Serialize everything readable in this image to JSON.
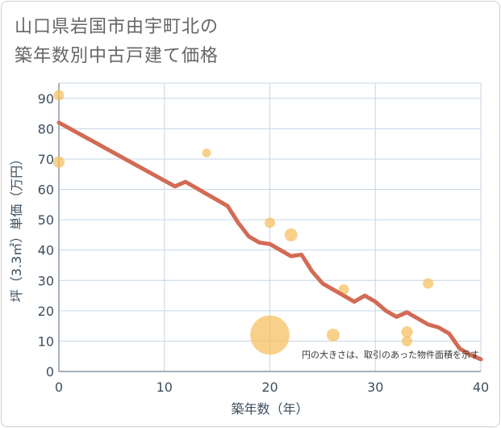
{
  "title_line1": "山口県岩国市由宇町北の",
  "title_line2": "築年数別中古戸建て価格",
  "chart_data": {
    "type": "scatter+line",
    "xlabel": "築年数（年）",
    "ylabel": "坪（3.3㎡）単価（万円）",
    "xlim": [
      0,
      40
    ],
    "ylim": [
      0,
      95
    ],
    "xticks": [
      0,
      10,
      20,
      30,
      40
    ],
    "yticks": [
      0,
      10,
      20,
      30,
      40,
      50,
      60,
      70,
      80,
      90
    ],
    "annotation": "円の大きさは、取引のあった物件面積を示す",
    "colors": {
      "line": "#d26b55",
      "bubble": "#f5c063",
      "grid": "#c7d6e6"
    },
    "trend_line": {
      "x": [
        0,
        11,
        12,
        16,
        17,
        18,
        19,
        20,
        21,
        22,
        23,
        24,
        25,
        26,
        27,
        28,
        29,
        30,
        31,
        32,
        33,
        34,
        35,
        36,
        37,
        38,
        39,
        40
      ],
      "y": [
        82,
        61,
        62.5,
        54.5,
        49,
        44.5,
        42.5,
        42,
        40,
        38,
        38.5,
        33,
        29,
        27,
        25,
        23,
        25,
        23,
        20,
        18,
        19.5,
        17.5,
        15.5,
        14.5,
        12.5,
        7.5,
        5.5,
        4
      ]
    },
    "bubbles": [
      {
        "x": 0,
        "y": 91,
        "size": 1
      },
      {
        "x": 0,
        "y": 69,
        "size": 1.2
      },
      {
        "x": 14,
        "y": 72,
        "size": 0.7
      },
      {
        "x": 20,
        "y": 49,
        "size": 1
      },
      {
        "x": 22,
        "y": 45,
        "size": 1.5
      },
      {
        "x": 20,
        "y": 12,
        "size": 14
      },
      {
        "x": 26,
        "y": 12,
        "size": 1.5
      },
      {
        "x": 27,
        "y": 27,
        "size": 1
      },
      {
        "x": 33,
        "y": 13,
        "size": 1.2
      },
      {
        "x": 33,
        "y": 10,
        "size": 1
      },
      {
        "x": 35,
        "y": 29,
        "size": 1
      }
    ]
  }
}
